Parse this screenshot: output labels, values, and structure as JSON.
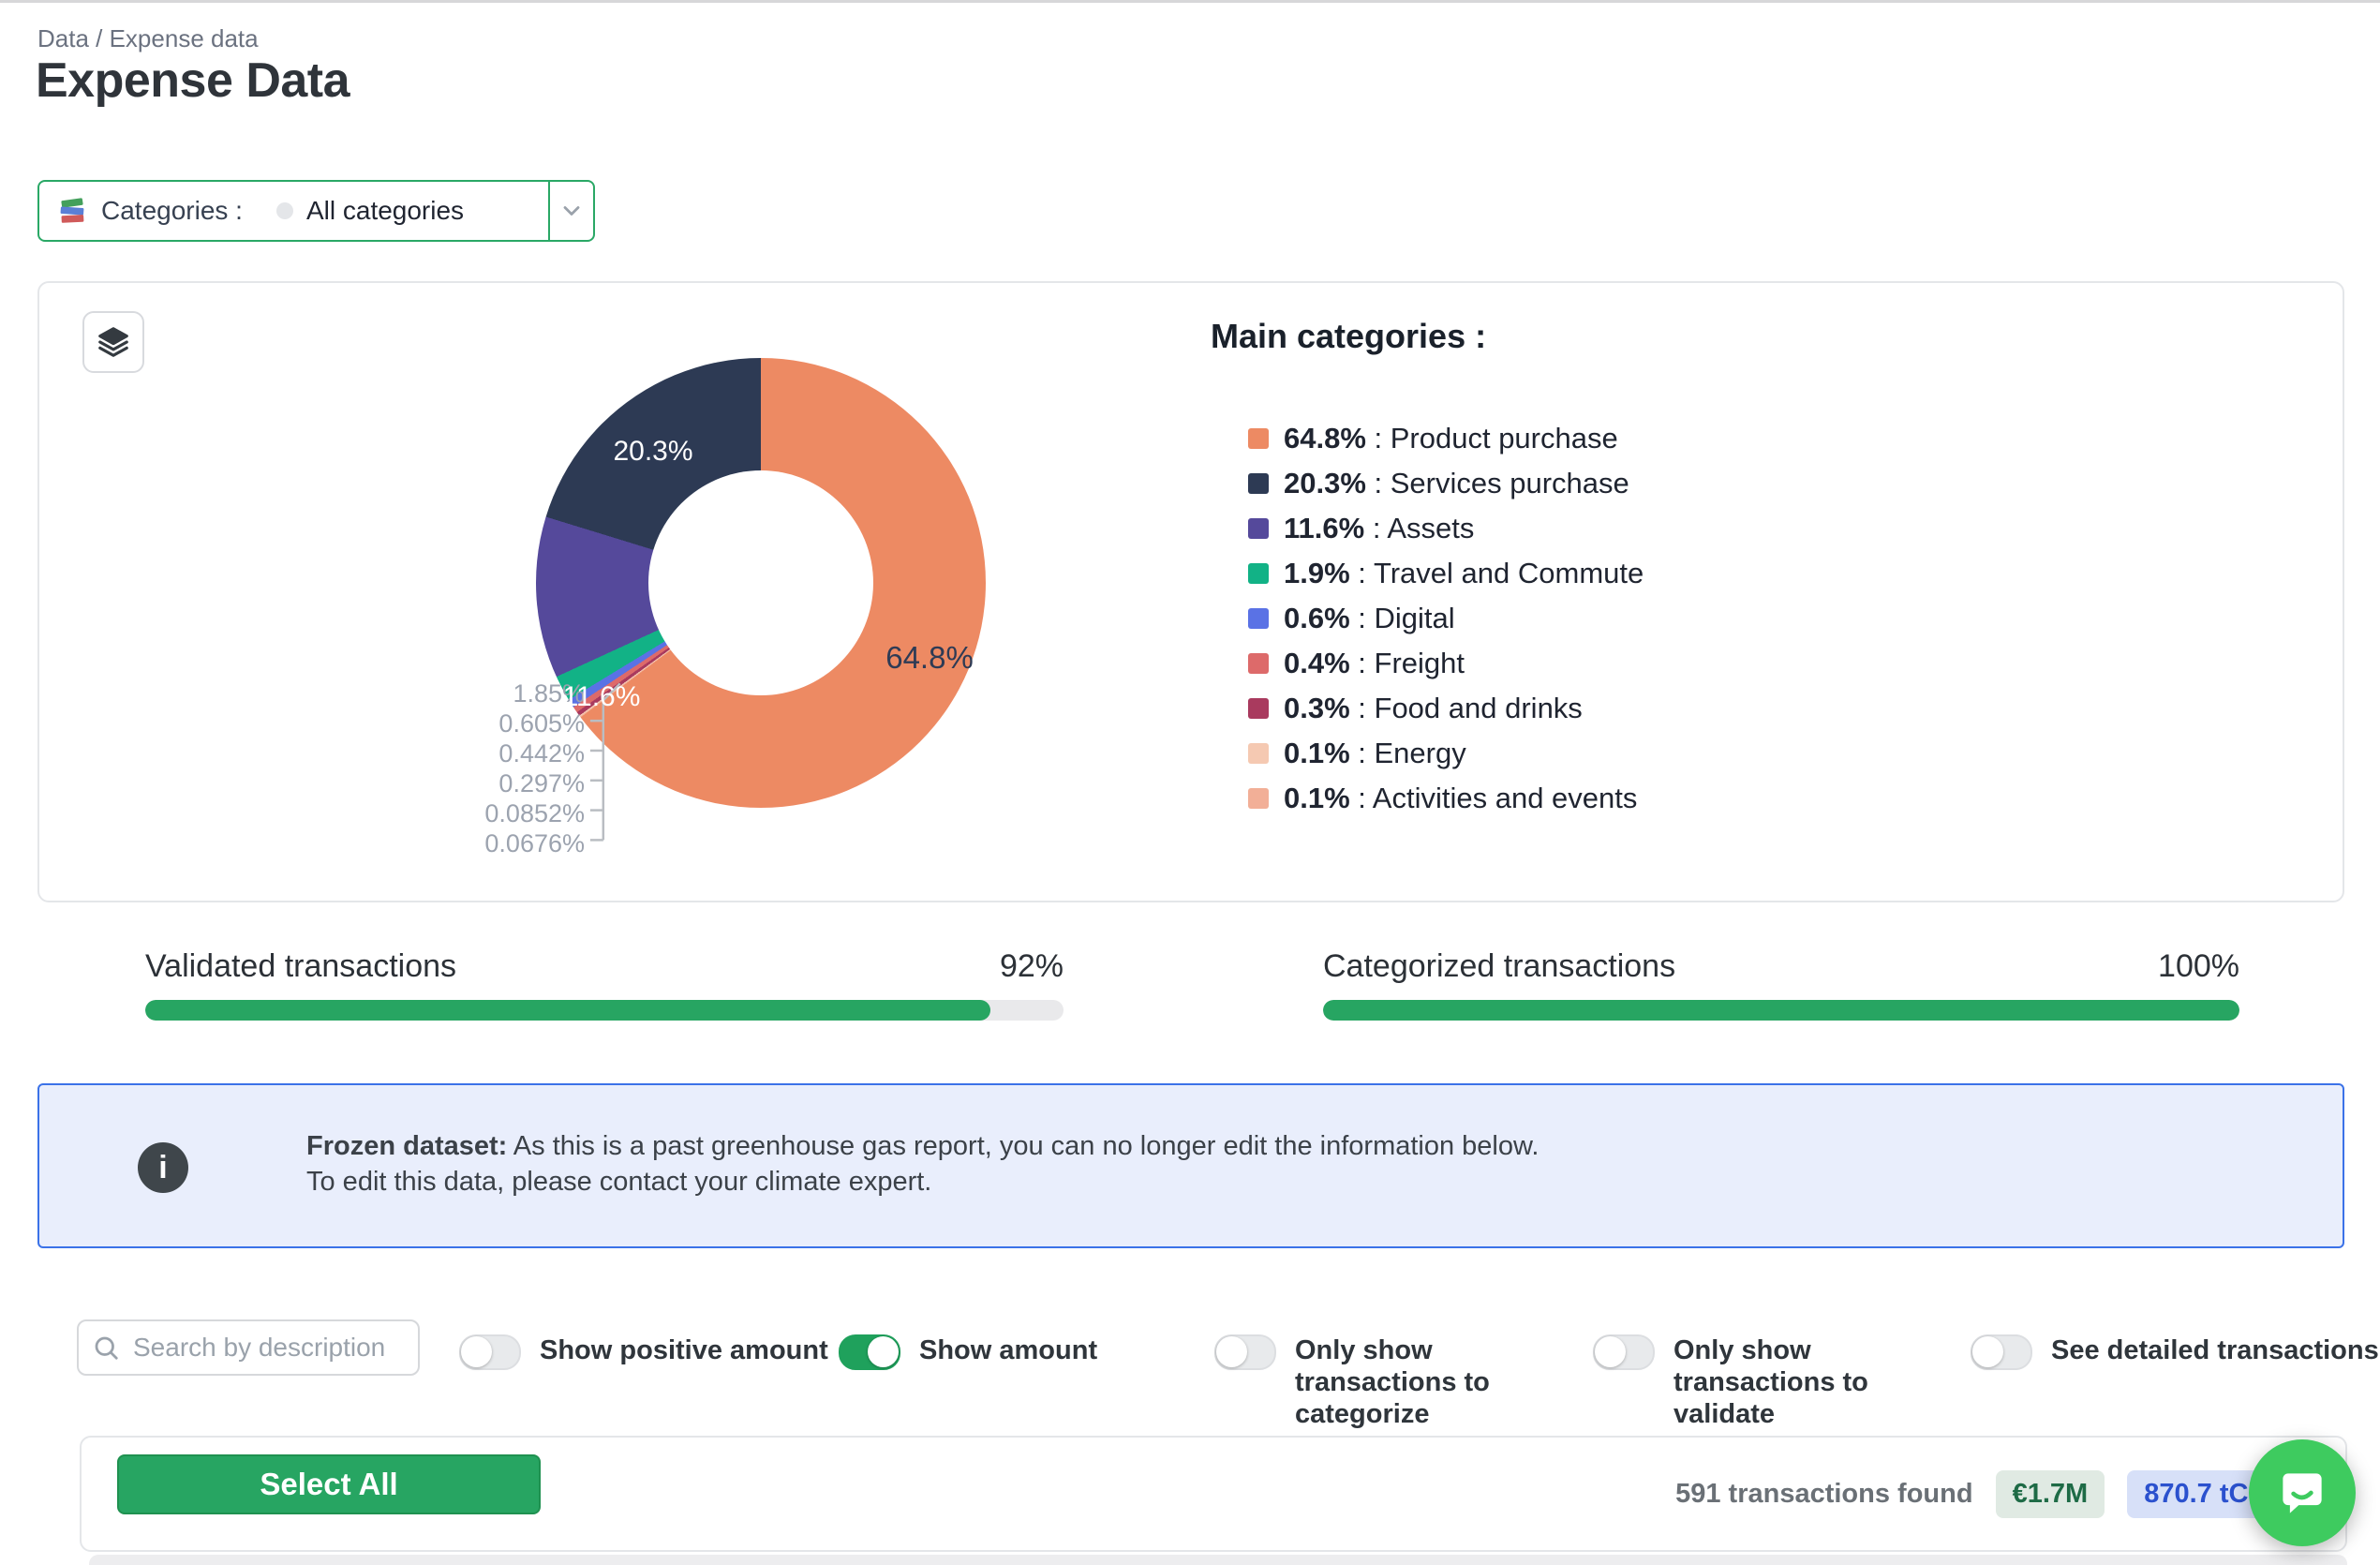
{
  "page": {
    "breadcrumb": "Data / Expense data",
    "title": "Expense Data"
  },
  "category_filter": {
    "label": "Categories :",
    "value": "All categories"
  },
  "chart_data": {
    "type": "pie",
    "donut": true,
    "title": "Main categories :",
    "legend_position": "right",
    "slices": [
      {
        "name": "Product purchase",
        "value_pct": 64.8,
        "legend_pct": "64.8%",
        "display_pct": "64.8%",
        "color": "#ED8A63",
        "label_position": "inside"
      },
      {
        "name": "Services purchase",
        "value_pct": 20.3,
        "legend_pct": "20.3%",
        "display_pct": "20.3%",
        "color": "#2D3A54",
        "label_position": "inside"
      },
      {
        "name": "Assets",
        "value_pct": 11.6,
        "legend_pct": "11.6%",
        "display_pct": "11.6%",
        "color": "#55499B",
        "label_position": "inside"
      },
      {
        "name": "Travel and Commute",
        "value_pct": 1.85,
        "legend_pct": "1.9%",
        "display_pct": "1.85%",
        "color": "#12B286",
        "label_position": "outside"
      },
      {
        "name": "Digital",
        "value_pct": 0.605,
        "legend_pct": "0.6%",
        "display_pct": "0.605%",
        "color": "#5A72E5",
        "label_position": "outside"
      },
      {
        "name": "Freight",
        "value_pct": 0.442,
        "legend_pct": "0.4%",
        "display_pct": "0.442%",
        "color": "#DD6A6A",
        "label_position": "outside"
      },
      {
        "name": "Food and drinks",
        "value_pct": 0.297,
        "legend_pct": "0.3%",
        "display_pct": "0.297%",
        "color": "#A93A5E",
        "label_position": "outside"
      },
      {
        "name": "Energy",
        "value_pct": 0.0852,
        "legend_pct": "0.1%",
        "display_pct": "0.0852%",
        "color": "#F5C9B2",
        "label_position": "outside"
      },
      {
        "name": "Activities and events",
        "value_pct": 0.0676,
        "legend_pct": "0.1%",
        "display_pct": "0.0676%",
        "color": "#F2AF97",
        "label_position": "outside"
      }
    ]
  },
  "progress_bars": [
    {
      "label": "Validated transactions",
      "value": "92%",
      "pct": 92
    },
    {
      "label": "Categorized transactions",
      "value": "100%",
      "pct": 100
    }
  ],
  "banner": {
    "bold": "Frozen dataset:",
    "line1": "As this is a past greenhouse gas report, you can no longer edit the information below.",
    "line2": "To edit this data, please contact your climate expert.",
    "icon": "info-icon",
    "info_glyph": "i"
  },
  "filters": {
    "search_placeholder": "Search by description",
    "toggles": [
      {
        "label": "Show positive amount",
        "on": false
      },
      {
        "label": "Show amount",
        "on": true
      },
      {
        "label": "Only show transactions to categorize",
        "on": false
      },
      {
        "label": "Only show transactions to validate",
        "on": false
      },
      {
        "label": "See detailed transactions",
        "on": false
      }
    ]
  },
  "results_bar": {
    "select_all": "Select All",
    "count": "591 transactions found",
    "amount_badge": "€1.7M",
    "emissions_badge": "870.7 tCO₂e"
  },
  "colors": {
    "accent_green": "#27A562",
    "toggle_on_green": "#1FA15C",
    "category_border_green": "#2AA866",
    "chat_green": "#3ECB5F",
    "banner_bg": "#E9EEFC",
    "banner_border": "#3B72E8",
    "amount_badge_bg": "#E0EAE3",
    "amount_badge_text": "#1E6B46",
    "emissions_badge_bg": "#D7E0F8",
    "emissions_badge_text": "#2B51CE",
    "progress_track": "#E9E9EB",
    "outside_label_gray": "#9CA3AF"
  }
}
